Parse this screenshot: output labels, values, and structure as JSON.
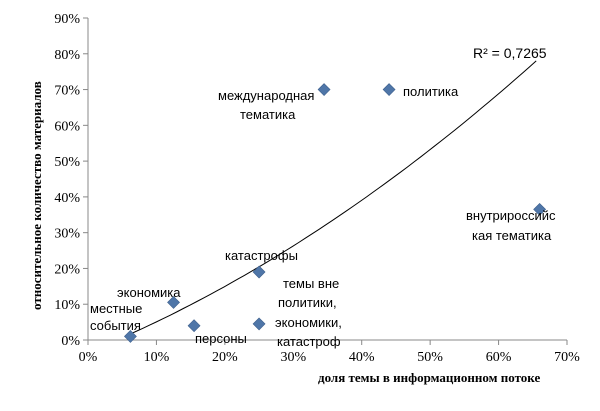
{
  "chart_data": {
    "type": "scatter",
    "xlabel": "доля темы в информационном потоке",
    "ylabel": "относительное количество материалов",
    "xlim": [
      0,
      0.7
    ],
    "ylim": [
      0,
      0.9
    ],
    "x_ticks": [
      "0%",
      "10%",
      "20%",
      "30%",
      "40%",
      "50%",
      "60%",
      "70%"
    ],
    "y_ticks": [
      "0%",
      "10%",
      "20%",
      "30%",
      "40%",
      "50%",
      "60%",
      "70%",
      "80%",
      "90%"
    ],
    "points": [
      {
        "label": "местные события",
        "x": 0.062,
        "y": 0.01
      },
      {
        "label": "экономика",
        "x": 0.125,
        "y": 0.105
      },
      {
        "label": "персоны",
        "x": 0.155,
        "y": 0.04
      },
      {
        "label": "катастрофы",
        "x": 0.25,
        "y": 0.19
      },
      {
        "label": "темы вне политики, экономики, катастроф",
        "x": 0.25,
        "y": 0.045
      },
      {
        "label": "международная тематика",
        "x": 0.345,
        "y": 0.7
      },
      {
        "label": "политика",
        "x": 0.44,
        "y": 0.7
      },
      {
        "label": "внутрироссийская тематика",
        "x": 0.66,
        "y": 0.365
      }
    ],
    "trendline": {
      "type": "polynomial",
      "r2_label": "R² = 0,7265",
      "x_range": [
        0.06,
        0.655
      ]
    },
    "legend": "none",
    "grid": false,
    "marker_color": "#4F76A8"
  },
  "labels": {
    "mestnye": [
      "местные",
      "события"
    ],
    "ekonomika": [
      "экономика"
    ],
    "persony": [
      "персоны"
    ],
    "katastrofy": [
      "катастрофы"
    ],
    "temy_vne": [
      "темы вне",
      "политики,",
      "экономики,",
      "катастроф"
    ],
    "mezhdunar": [
      "международная",
      "тематика"
    ],
    "politika": [
      "политика"
    ],
    "vnutri": [
      "внутрироссийс",
      "кая тематика"
    ]
  }
}
